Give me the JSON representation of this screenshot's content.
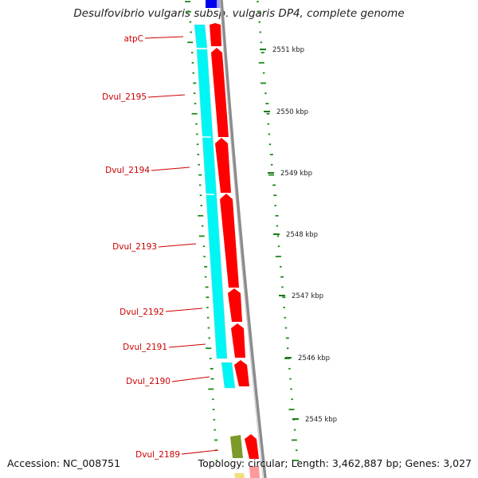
{
  "title": "Desulfovibrio vulgaris subsp. vulgaris DP4, complete genome",
  "accession": "Accession: NC_008751",
  "summary": "Topology: circular; Length: 3,462,887 bp; Genes: 3,027",
  "colors": {
    "gene_forward": "#ff0000",
    "gene_reverse_cyan": "#00ffff",
    "gene_olive": "#7b9a2a",
    "gene_blue": "#0000ff",
    "label": "#cc0000",
    "tick": "#1a7a1a",
    "backbone": "#8c8c8c"
  },
  "genes": [
    {
      "name": "atpC",
      "type": "forward-red"
    },
    {
      "name": "Dvul_2195",
      "type": "forward-red"
    },
    {
      "name": "Dvul_2194",
      "type": "forward-red"
    },
    {
      "name": "Dvul_2193",
      "type": "forward-red"
    },
    {
      "name": "Dvul_2192",
      "type": "forward-red"
    },
    {
      "name": "Dvul_2191",
      "type": "forward-red"
    },
    {
      "name": "Dvul_2190",
      "type": "forward-red"
    },
    {
      "name": "Dvul_2189",
      "type": "forward-red"
    }
  ],
  "scale_labels": [
    "2551 kbp",
    "2550 kbp",
    "2549 kbp",
    "2548 kbp",
    "2547 kbp",
    "2546 kbp",
    "2545 kbp"
  ]
}
